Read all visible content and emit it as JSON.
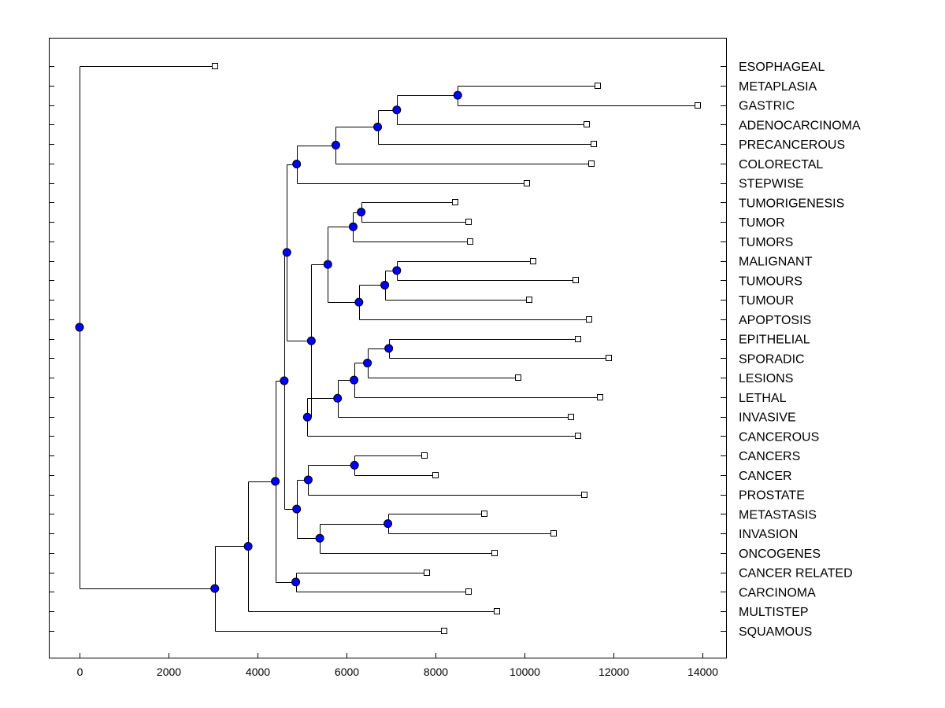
{
  "chart_data": {
    "type": "dendrogram",
    "title": "",
    "xlabel": "",
    "ylabel": "",
    "xlim": [
      -700,
      15300
    ],
    "x_ticks": [
      "0",
      "2000",
      "4000",
      "6000",
      "8000",
      "10000",
      "12000",
      "14000"
    ],
    "x_tick_values": [
      0,
      2000,
      4000,
      6000,
      8000,
      10000,
      12000,
      14000
    ],
    "node_color": "#0000ff",
    "leaves": [
      {
        "label": "ESOPHAGEAL",
        "x": 3050
      },
      {
        "label": "METAPLASIA",
        "x": 11650
      },
      {
        "label": "GASTRIC",
        "x": 13900
      },
      {
        "label": "ADENOCARCINOMA",
        "x": 11400
      },
      {
        "label": "PRECANCEROUS",
        "x": 11550
      },
      {
        "label": "COLORECTAL",
        "x": 11500
      },
      {
        "label": "STEPWISE",
        "x": 10050
      },
      {
        "label": "TUMORIGENESIS",
        "x": 8450
      },
      {
        "label": "TUMOR",
        "x": 8750
      },
      {
        "label": "TUMORS",
        "x": 8780
      },
      {
        "label": "MALIGNANT",
        "x": 10200
      },
      {
        "label": "TUMOURS",
        "x": 11150
      },
      {
        "label": "TUMOUR",
        "x": 10100
      },
      {
        "label": "APOPTOSIS",
        "x": 11450
      },
      {
        "label": "EPITHELIAL",
        "x": 11200
      },
      {
        "label": "SPORADIC",
        "x": 11900
      },
      {
        "label": "LESIONS",
        "x": 9850
      },
      {
        "label": "LETHAL",
        "x": 11700
      },
      {
        "label": "INVASIVE",
        "x": 11050
      },
      {
        "label": "CANCEROUS",
        "x": 11200
      },
      {
        "label": "CANCERS",
        "x": 7750
      },
      {
        "label": "CANCER",
        "x": 8000
      },
      {
        "label": "PROSTATE",
        "x": 11350
      },
      {
        "label": "METASTASIS",
        "x": 9100
      },
      {
        "label": "INVASION",
        "x": 10650
      },
      {
        "label": "ONCOGENES",
        "x": 9330
      },
      {
        "label": "CANCER RELATED",
        "x": 7800
      },
      {
        "label": "CARCINOMA",
        "x": 8750
      },
      {
        "label": "MULTISTEP",
        "x": 9380
      },
      {
        "label": "SQUAMOUS",
        "x": 8200
      }
    ],
    "merges": [
      {
        "id": "n1",
        "x": 8500,
        "children": [
          "L1",
          "L2"
        ]
      },
      {
        "id": "n2",
        "x": 7130,
        "children": [
          "n1",
          "L3"
        ]
      },
      {
        "id": "n3",
        "x": 6700,
        "children": [
          "n2",
          "L4"
        ]
      },
      {
        "id": "n4",
        "x": 5760,
        "children": [
          "n3",
          "L5"
        ]
      },
      {
        "id": "n5",
        "x": 4880,
        "children": [
          "n4",
          "L6"
        ]
      },
      {
        "id": "n6",
        "x": 6330,
        "children": [
          "L7",
          "L8"
        ]
      },
      {
        "id": "n7",
        "x": 6150,
        "children": [
          "n6",
          "L9"
        ]
      },
      {
        "id": "n8",
        "x": 7130,
        "children": [
          "L10",
          "L11"
        ]
      },
      {
        "id": "n9",
        "x": 6860,
        "children": [
          "n8",
          "L12"
        ]
      },
      {
        "id": "n10",
        "x": 6280,
        "children": [
          "n9",
          "L13"
        ]
      },
      {
        "id": "n11",
        "x": 5580,
        "children": [
          "n7",
          "n10"
        ]
      },
      {
        "id": "n12",
        "x": 6950,
        "children": [
          "L14",
          "L15"
        ]
      },
      {
        "id": "n13",
        "x": 6470,
        "children": [
          "n12",
          "L16"
        ]
      },
      {
        "id": "n14",
        "x": 6170,
        "children": [
          "n13",
          "L17"
        ]
      },
      {
        "id": "n15",
        "x": 5800,
        "children": [
          "n14",
          "L18"
        ]
      },
      {
        "id": "n16",
        "x": 5120,
        "children": [
          "n15",
          "L19"
        ]
      },
      {
        "id": "n17",
        "x": 5210,
        "children": [
          "n11",
          "n16"
        ]
      },
      {
        "id": "n18",
        "x": 4660,
        "children": [
          "n5",
          "n17"
        ]
      },
      {
        "id": "n19",
        "x": 6180,
        "children": [
          "L20",
          "L21"
        ]
      },
      {
        "id": "n20",
        "x": 5140,
        "children": [
          "n19",
          "L22"
        ]
      },
      {
        "id": "n21",
        "x": 6930,
        "children": [
          "L23",
          "L24"
        ]
      },
      {
        "id": "n22",
        "x": 5400,
        "children": [
          "n21",
          "L25"
        ]
      },
      {
        "id": "n23",
        "x": 4880,
        "children": [
          "n20",
          "n22"
        ]
      },
      {
        "id": "n24",
        "x": 4600,
        "children": [
          "n18",
          "n23"
        ]
      },
      {
        "id": "n25",
        "x": 4860,
        "children": [
          "L26",
          "L27"
        ]
      },
      {
        "id": "n26",
        "x": 4400,
        "children": [
          "n24",
          "n25"
        ]
      },
      {
        "id": "n27",
        "x": 3790,
        "children": [
          "n26",
          "L28"
        ]
      },
      {
        "id": "n28",
        "x": 3040,
        "children": [
          "n27",
          "L29"
        ]
      },
      {
        "id": "n29",
        "x": 0,
        "children": [
          "L0",
          "n28"
        ]
      }
    ]
  }
}
